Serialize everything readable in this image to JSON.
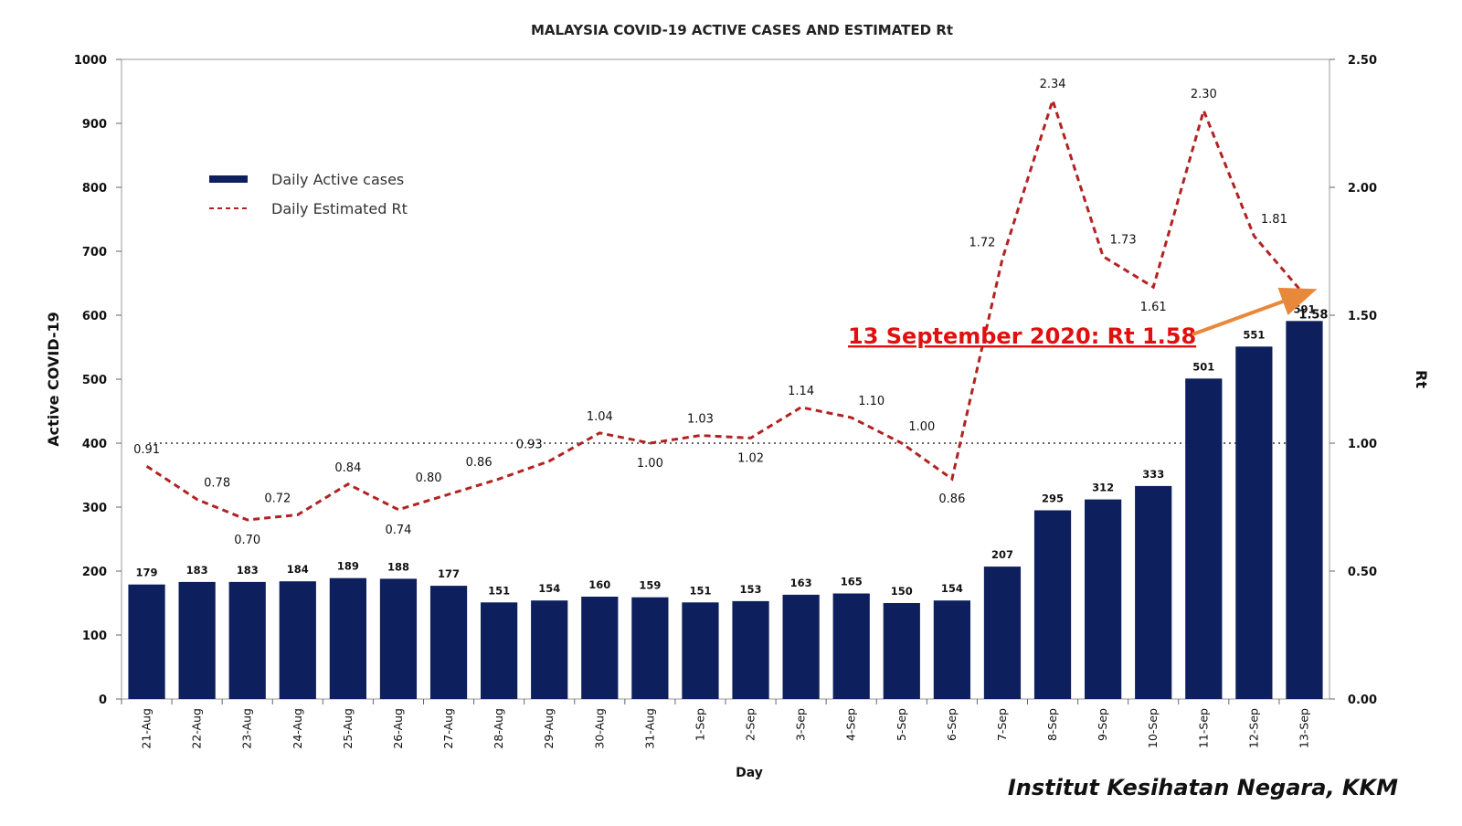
{
  "chart_data": {
    "type": "bar",
    "title": "MALAYSIA COVID-19 ACTIVE CASES AND ESTIMATED  Rt",
    "xlabel": "Day",
    "ylabel": "Active COVID-19",
    "y2label": "Rt",
    "ylim": [
      0,
      1000
    ],
    "y2lim": [
      0,
      2.5
    ],
    "yticks": [
      "0",
      "100",
      "200",
      "300",
      "400",
      "500",
      "600",
      "700",
      "800",
      "900",
      "1000"
    ],
    "y2ticks": [
      "0.00",
      "0.50",
      "1.00",
      "1.50",
      "2.00",
      "2.50"
    ],
    "categories": [
      "21-Aug",
      "22-Aug",
      "23-Aug",
      "24-Aug",
      "25-Aug",
      "26-Aug",
      "27-Aug",
      "28-Aug",
      "29-Aug",
      "30-Aug",
      "31-Aug",
      "1-Sep",
      "2-Sep",
      "3-Sep",
      "4-Sep",
      "5-Sep",
      "6-Sep",
      "7-Sep",
      "8-Sep",
      "9-Sep",
      "10-Sep",
      "11-Sep",
      "12-Sep",
      "13-Sep"
    ],
    "series": [
      {
        "name": "Daily Active cases",
        "type": "bar",
        "axis": "left",
        "color": "#0d1f5c",
        "values": [
          179,
          183,
          183,
          184,
          189,
          188,
          177,
          151,
          154,
          160,
          159,
          151,
          153,
          163,
          165,
          150,
          154,
          207,
          295,
          312,
          333,
          501,
          551,
          591
        ]
      },
      {
        "name": "Daily Estimated Rt",
        "type": "line",
        "style": "dashed",
        "axis": "right",
        "color": "#b22222",
        "values": [
          0.91,
          0.78,
          0.7,
          0.72,
          0.84,
          0.74,
          0.8,
          0.86,
          0.93,
          1.04,
          1.0,
          1.03,
          1.02,
          1.14,
          1.1,
          1.0,
          0.86,
          1.72,
          2.34,
          1.73,
          1.61,
          2.3,
          1.81,
          1.58
        ],
        "labels": [
          "0.91",
          "0.78",
          "0.70",
          "0.72",
          "0.84",
          "0.74",
          "0.80",
          "0.86",
          "0.93",
          "1.04",
          "1.00",
          "1.03",
          "1.02",
          "1.14",
          "1.10",
          "1.00",
          "0.86",
          "1.72",
          "2.34",
          "1.73",
          "1.61",
          "2.30",
          "1.81",
          "1.58"
        ]
      }
    ],
    "reference_line": {
      "axis": "right",
      "value": 1.0,
      "style": "dotted"
    },
    "legend": {
      "placement": "top-left",
      "items": [
        "Daily Active cases",
        "Daily Estimated Rt"
      ]
    },
    "annotation": {
      "text": "13 September 2020:  Rt 1.58",
      "color": "#e01010",
      "arrow_color": "#e8883a"
    },
    "grid": false
  },
  "credit": "Institut Kesihatan Negara, KKM"
}
